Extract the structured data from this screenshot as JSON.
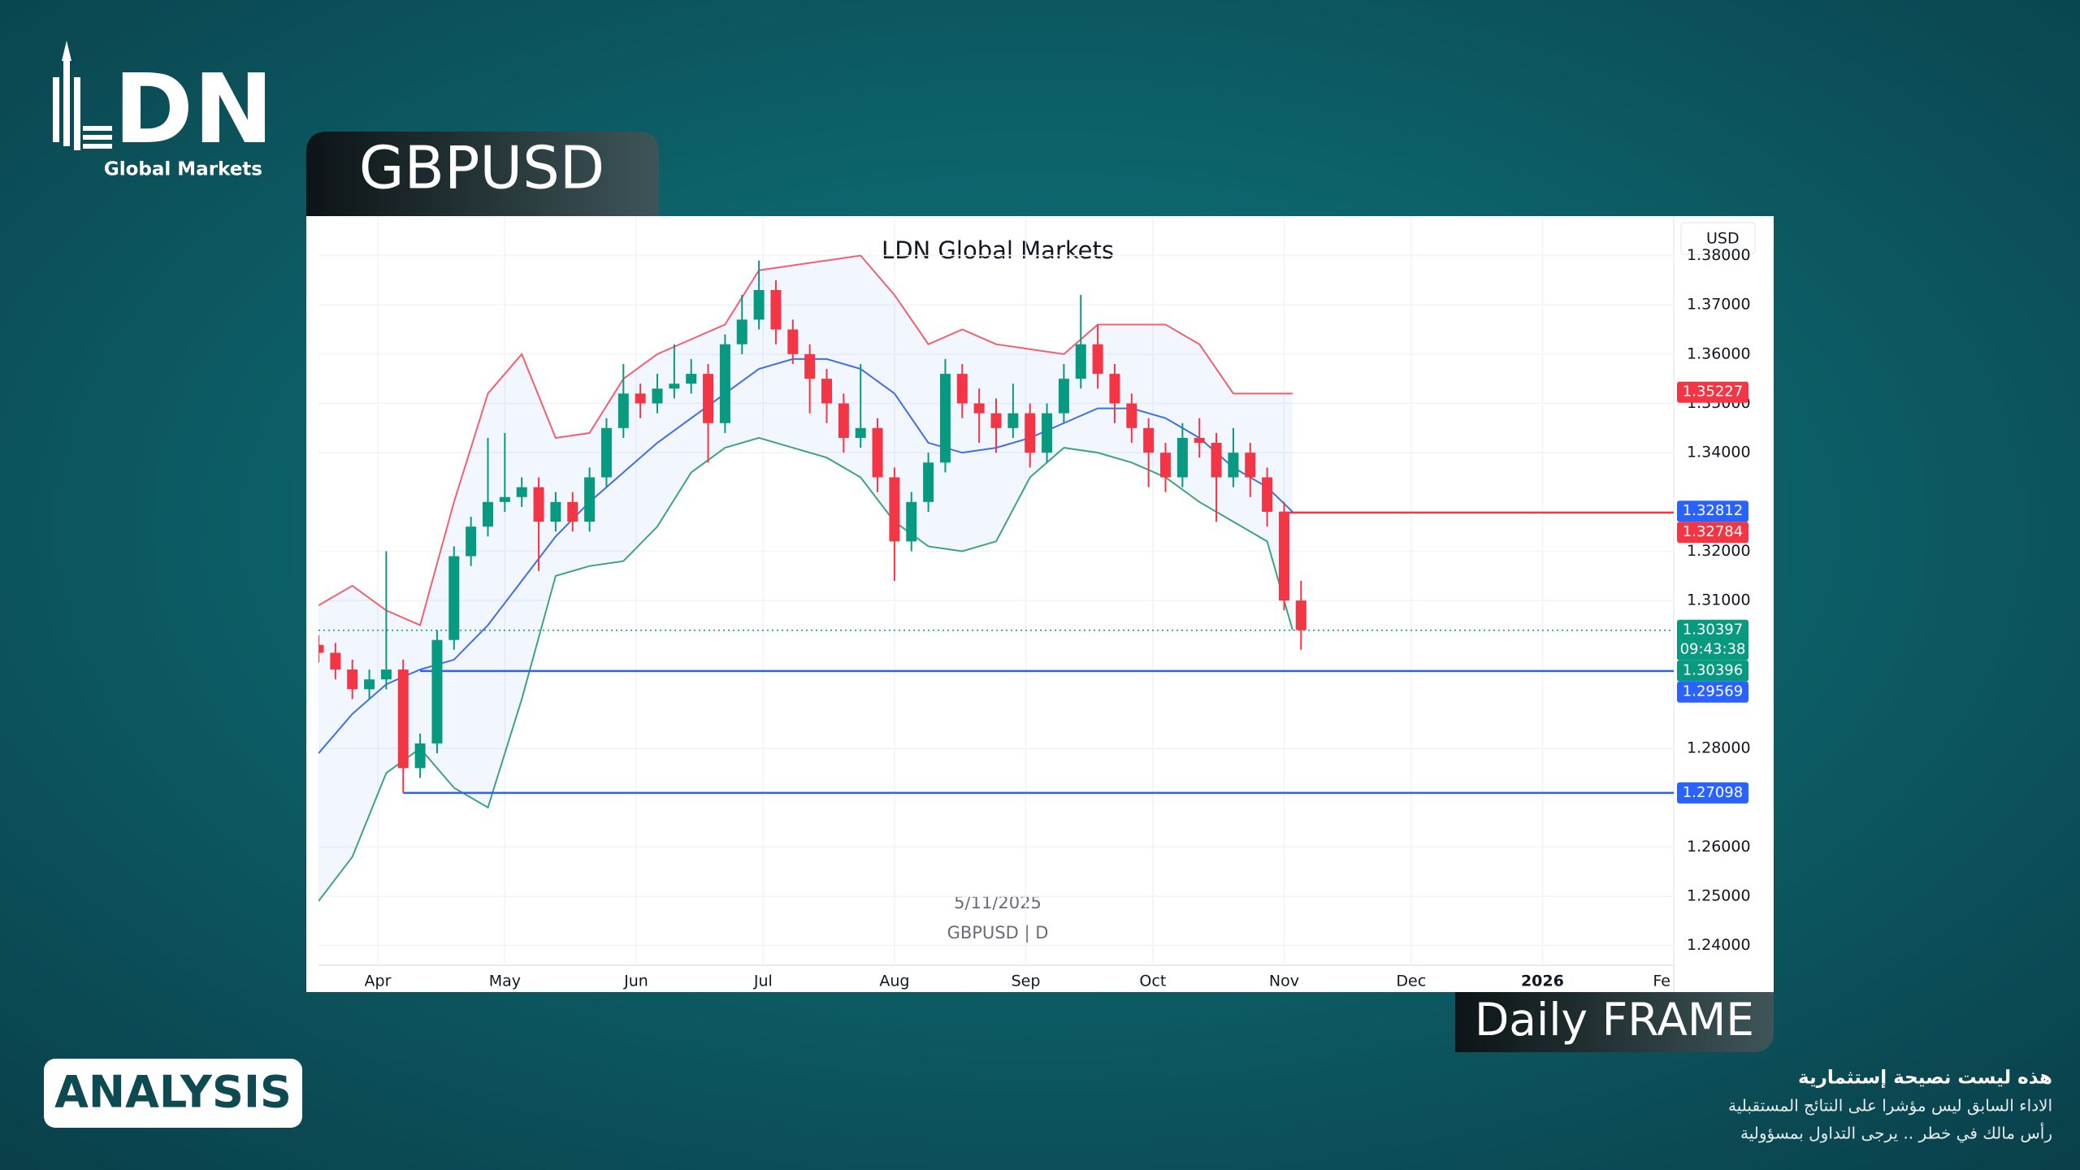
{
  "logo": {
    "text": "DN",
    "subtitle": "Global Markets"
  },
  "symbol_tab": "GBPUSD",
  "frame_tab": "Daily FRAME",
  "analysis_button": "ANALYSIS",
  "disclaimer": [
    "هذه ليست نصيحة إستثمارية",
    "الاداء السابق ليس مؤشرا على النتائج المستقبلية",
    "رأس مالك في خطر .. يرجى التداول بمسؤولية"
  ],
  "chart_data": {
    "type": "candlestick",
    "title": "LDN Global Markets",
    "annotations": [
      "5/11/2025",
      "GBPUSD | D"
    ],
    "y_unit": "USD",
    "up_color": "#089981",
    "down_color": "#f23645",
    "grid": true,
    "xlim": [
      -14,
      306
    ],
    "ylim": [
      1.236,
      1.388
    ],
    "xticks": [
      {
        "value": 0,
        "label": "Apr"
      },
      {
        "value": 30,
        "label": "May"
      },
      {
        "value": 61,
        "label": "Jun"
      },
      {
        "value": 91,
        "label": "Jul"
      },
      {
        "value": 122,
        "label": "Aug"
      },
      {
        "value": 153,
        "label": "Sep"
      },
      {
        "value": 183,
        "label": "Oct"
      },
      {
        "value": 214,
        "label": "Nov"
      },
      {
        "value": 244,
        "label": "Dec"
      },
      {
        "value": 275,
        "label": "2026"
      },
      {
        "value": 306,
        "label": "Fe"
      }
    ],
    "yticks": [
      {
        "value": 1.38,
        "label": "1.38000"
      },
      {
        "value": 1.37,
        "label": "1.37000"
      },
      {
        "value": 1.36,
        "label": "1.36000"
      },
      {
        "value": 1.35,
        "label": "1.35000"
      },
      {
        "value": 1.34,
        "label": "1.34000"
      },
      {
        "value": 1.32,
        "label": "1.32000"
      },
      {
        "value": 1.31,
        "label": "1.31000"
      },
      {
        "value": 1.28,
        "label": "1.28000"
      },
      {
        "value": 1.26,
        "label": "1.26000"
      },
      {
        "value": 1.25,
        "label": "1.25000"
      },
      {
        "value": 1.24,
        "label": "1.24000"
      }
    ],
    "x": [
      -14,
      -10,
      -6,
      -2,
      2,
      6,
      10,
      14,
      18,
      22,
      26,
      30,
      34,
      38,
      42,
      46,
      50,
      54,
      58,
      62,
      66,
      70,
      74,
      78,
      82,
      86,
      90,
      94,
      98,
      102,
      106,
      110,
      114,
      118,
      122,
      126,
      130,
      134,
      138,
      142,
      146,
      150,
      154,
      158,
      162,
      166,
      170,
      174,
      178,
      182,
      186,
      190,
      194,
      198,
      202,
      206,
      210,
      214,
      218
    ],
    "open": [
      1.301,
      1.2994,
      1.296,
      1.292,
      1.294,
      1.296,
      1.276,
      1.281,
      1.302,
      1.319,
      1.325,
      1.33,
      1.331,
      1.333,
      1.326,
      1.33,
      1.326,
      1.335,
      1.345,
      1.352,
      1.35,
      1.353,
      1.354,
      1.356,
      1.346,
      1.362,
      1.367,
      1.373,
      1.365,
      1.36,
      1.355,
      1.35,
      1.343,
      1.345,
      1.335,
      1.322,
      1.33,
      1.338,
      1.356,
      1.35,
      1.348,
      1.345,
      1.348,
      1.34,
      1.348,
      1.355,
      1.362,
      1.356,
      1.35,
      1.345,
      1.34,
      1.335,
      1.343,
      1.342,
      1.335,
      1.34,
      1.335,
      1.328,
      1.31
    ],
    "high": [
      1.303,
      1.3014,
      1.298,
      1.296,
      1.32,
      1.298,
      1.283,
      1.304,
      1.321,
      1.327,
      1.343,
      1.344,
      1.335,
      1.335,
      1.332,
      1.332,
      1.337,
      1.347,
      1.358,
      1.354,
      1.356,
      1.362,
      1.359,
      1.358,
      1.364,
      1.372,
      1.379,
      1.375,
      1.367,
      1.362,
      1.357,
      1.352,
      1.358,
      1.347,
      1.337,
      1.332,
      1.34,
      1.359,
      1.358,
      1.353,
      1.351,
      1.354,
      1.35,
      1.35,
      1.358,
      1.372,
      1.366,
      1.358,
      1.352,
      1.347,
      1.342,
      1.346,
      1.347,
      1.344,
      1.345,
      1.342,
      1.337,
      1.33,
      1.314
    ],
    "low": [
      1.2974,
      1.294,
      1.29,
      1.29,
      1.292,
      1.271,
      1.274,
      1.279,
      1.3,
      1.317,
      1.323,
      1.328,
      1.329,
      1.316,
      1.324,
      1.324,
      1.324,
      1.333,
      1.343,
      1.347,
      1.348,
      1.351,
      1.352,
      1.338,
      1.344,
      1.36,
      1.365,
      1.362,
      1.358,
      1.348,
      1.346,
      1.34,
      1.341,
      1.332,
      1.314,
      1.32,
      1.328,
      1.336,
      1.347,
      1.342,
      1.34,
      1.343,
      1.337,
      1.338,
      1.346,
      1.353,
      1.353,
      1.346,
      1.342,
      1.333,
      1.332,
      1.333,
      1.339,
      1.326,
      1.333,
      1.331,
      1.325,
      1.308,
      1.3
    ],
    "close": [
      1.2994,
      1.296,
      1.292,
      1.294,
      1.296,
      1.276,
      1.281,
      1.302,
      1.319,
      1.325,
      1.33,
      1.331,
      1.333,
      1.326,
      1.33,
      1.326,
      1.335,
      1.345,
      1.352,
      1.35,
      1.353,
      1.354,
      1.356,
      1.346,
      1.362,
      1.367,
      1.373,
      1.365,
      1.36,
      1.355,
      1.35,
      1.343,
      1.345,
      1.335,
      1.322,
      1.33,
      1.338,
      1.356,
      1.35,
      1.348,
      1.345,
      1.348,
      1.34,
      1.348,
      1.355,
      1.362,
      1.356,
      1.35,
      1.345,
      1.34,
      1.335,
      1.343,
      1.342,
      1.335,
      1.34,
      1.335,
      1.328,
      1.31,
      1.304
    ],
    "bollinger": {
      "x": [
        -14,
        -6,
        2,
        10,
        18,
        26,
        34,
        42,
        50,
        58,
        66,
        74,
        82,
        90,
        98,
        106,
        114,
        122,
        130,
        138,
        146,
        154,
        162,
        170,
        178,
        186,
        194,
        202,
        210,
        216
      ],
      "fill": "#2962ff",
      "upper": {
        "color": "#f0616d",
        "values": [
          1.309,
          1.313,
          1.308,
          1.305,
          1.33,
          1.352,
          1.36,
          1.343,
          1.344,
          1.355,
          1.36,
          1.363,
          1.366,
          1.377,
          1.378,
          1.379,
          1.38,
          1.372,
          1.362,
          1.365,
          1.362,
          1.361,
          1.36,
          1.366,
          1.366,
          1.366,
          1.362,
          1.352,
          1.352,
          1.352
        ]
      },
      "middle": {
        "color": "#3f6fe0",
        "values": [
          1.279,
          1.287,
          1.293,
          1.296,
          1.298,
          1.305,
          1.314,
          1.323,
          1.33,
          1.336,
          1.342,
          1.347,
          1.352,
          1.357,
          1.359,
          1.359,
          1.357,
          1.352,
          1.342,
          1.34,
          1.341,
          1.343,
          1.346,
          1.349,
          1.349,
          1.347,
          1.343,
          1.337,
          1.333,
          1.328
        ]
      },
      "lower": {
        "color": "#3fa37f",
        "values": [
          1.249,
          1.258,
          1.275,
          1.28,
          1.272,
          1.268,
          1.29,
          1.315,
          1.317,
          1.318,
          1.325,
          1.336,
          1.341,
          1.343,
          1.341,
          1.339,
          1.335,
          1.326,
          1.321,
          1.32,
          1.322,
          1.335,
          1.341,
          1.34,
          1.338,
          1.335,
          1.33,
          1.326,
          1.322,
          1.304
        ]
      }
    },
    "levels": [
      {
        "value": 1.32784,
        "color": "#f23645",
        "from": 213
      },
      {
        "value": 1.29569,
        "color": "#2962ff",
        "from": 10
      },
      {
        "value": 1.27098,
        "color": "#2962ff",
        "from": 6
      }
    ],
    "price_labels": [
      {
        "value": 1.35227,
        "color": "#f23645"
      },
      {
        "value": 1.32812,
        "color": "#2962ff"
      },
      {
        "value": 1.32784,
        "color": "#f23645"
      },
      {
        "value": 1.30397,
        "color": "#089981",
        "sub": "09:43:38",
        "line": "dotted"
      },
      {
        "value": 1.30396,
        "color": "#089981"
      },
      {
        "value": 1.29569,
        "color": "#2962ff"
      },
      {
        "value": 1.27098,
        "color": "#2962ff"
      }
    ]
  }
}
